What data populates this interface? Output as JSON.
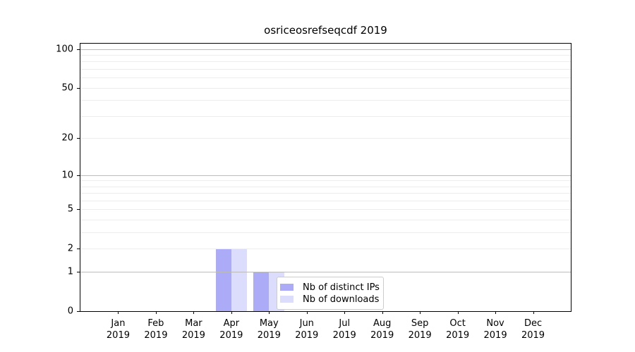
{
  "chart_data": {
    "type": "bar",
    "title": "osriceosrefseqcdf 2019",
    "categories": [
      "Jan",
      "Feb",
      "Mar",
      "Apr",
      "May",
      "Jun",
      "Jul",
      "Aug",
      "Sep",
      "Oct",
      "Nov",
      "Dec"
    ],
    "category_year": "2019",
    "series": [
      {
        "name": "Nb of distinct IPs",
        "values": [
          0,
          0,
          0,
          2,
          1,
          0,
          0,
          0,
          0,
          0,
          0,
          0
        ],
        "color": "rgba(102,102,240,0.55)"
      },
      {
        "name": "Nb of downloads",
        "values": [
          0,
          0,
          0,
          2,
          1,
          0,
          0,
          0,
          0,
          0,
          0,
          0
        ],
        "color": "rgba(102,102,240,0.23)"
      }
    ],
    "xlabel": "",
    "ylabel": "",
    "y_axis": {
      "tick_values": [
        0,
        1,
        2,
        5,
        10,
        20,
        50,
        100
      ],
      "major_gridlines": [
        1,
        10,
        100
      ],
      "minor_gridlines": [
        2,
        3,
        4,
        5,
        6,
        7,
        8,
        9,
        20,
        30,
        40,
        50,
        60,
        70,
        80,
        90
      ],
      "scale": "log1p",
      "ylim": [
        0,
        110
      ]
    },
    "legend": {
      "position": "lower-center",
      "entries": [
        "Nb of distinct IPs",
        "Nb of downloads"
      ]
    },
    "grid": true,
    "colors": {
      "major_grid": "#bbbbbb",
      "minor_grid": "#ededed",
      "spine": "#000000",
      "legend_border": "#cccccc"
    }
  }
}
